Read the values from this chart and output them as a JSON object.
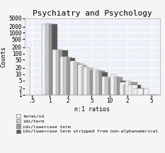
{
  "title": "Psychiatry and Psychology",
  "xlabel": "n:1 ratios",
  "ylabel": "Counts",
  "legend_labels": [
    "terms/id",
    "ids/term",
    "ids/lowercase term",
    "ids/lowercase term stripped from non-alphanumerical"
  ],
  "legend_colors": [
    "#f0f0f0",
    "#c8c8c8",
    "#989898",
    "#585858"
  ],
  "bar_edge_color": "#888888",
  "plot_bg": "#eef0f8",
  "fig_bg": "#f5f5f5",
  "grid_color": "#ffffff",
  "title_fontsize": 8,
  "axis_fontsize": 6,
  "tick_fontsize": 5.5,
  "legend_fontsize": 4.5,
  "bar_groups": [
    [
      0.5,
      [
        200,
        0,
        0,
        0
      ]
    ],
    [
      1.0,
      [
        2600,
        2800,
        2750,
        2650
      ]
    ],
    [
      1.5,
      [
        150,
        150,
        145,
        140
      ]
    ],
    [
      2.0,
      [
        70,
        68,
        65,
        62
      ]
    ],
    [
      3.0,
      [
        45,
        38,
        32,
        28
      ]
    ],
    [
      4.0,
      [
        30,
        25,
        20,
        18
      ]
    ],
    [
      5.0,
      [
        22,
        20,
        16,
        14
      ]
    ],
    [
      7.0,
      [
        18,
        16,
        14,
        12
      ]
    ],
    [
      10.0,
      [
        8,
        7,
        6,
        5
      ]
    ],
    [
      14.0,
      [
        10,
        8,
        7,
        5
      ]
    ],
    [
      20.0,
      [
        4,
        3,
        3,
        2
      ]
    ],
    [
      25.0,
      [
        5,
        4,
        4,
        3
      ]
    ],
    [
      28.0,
      [
        3,
        3,
        2,
        2
      ]
    ],
    [
      32.0,
      [
        3,
        2,
        2,
        1
      ]
    ],
    [
      35.0,
      [
        2,
        2,
        2,
        1
      ]
    ],
    [
      40.0,
      [
        2,
        1,
        1,
        1
      ]
    ],
    [
      50.0,
      [
        2,
        1,
        1,
        1
      ]
    ],
    [
      65.0,
      [
        1,
        1,
        1,
        1
      ]
    ]
  ],
  "xlim": [
    0.38,
    70
  ],
  "ylim_bottom": 1,
  "ylim_top": 5000,
  "xticks": [
    0.5,
    1,
    2,
    5,
    10,
    20,
    50
  ],
  "xticklabels": [
    ".5",
    "1",
    "2",
    "5",
    "10",
    "2",
    "5"
  ],
  "yticks": [
    1,
    2,
    5,
    10,
    20,
    50,
    100,
    200,
    500,
    1000,
    2000,
    5000
  ],
  "yticklabels": [
    "1",
    "2",
    "5",
    "10",
    "20",
    "50",
    "100",
    "200",
    "500",
    "1000",
    "2000",
    "5000"
  ]
}
